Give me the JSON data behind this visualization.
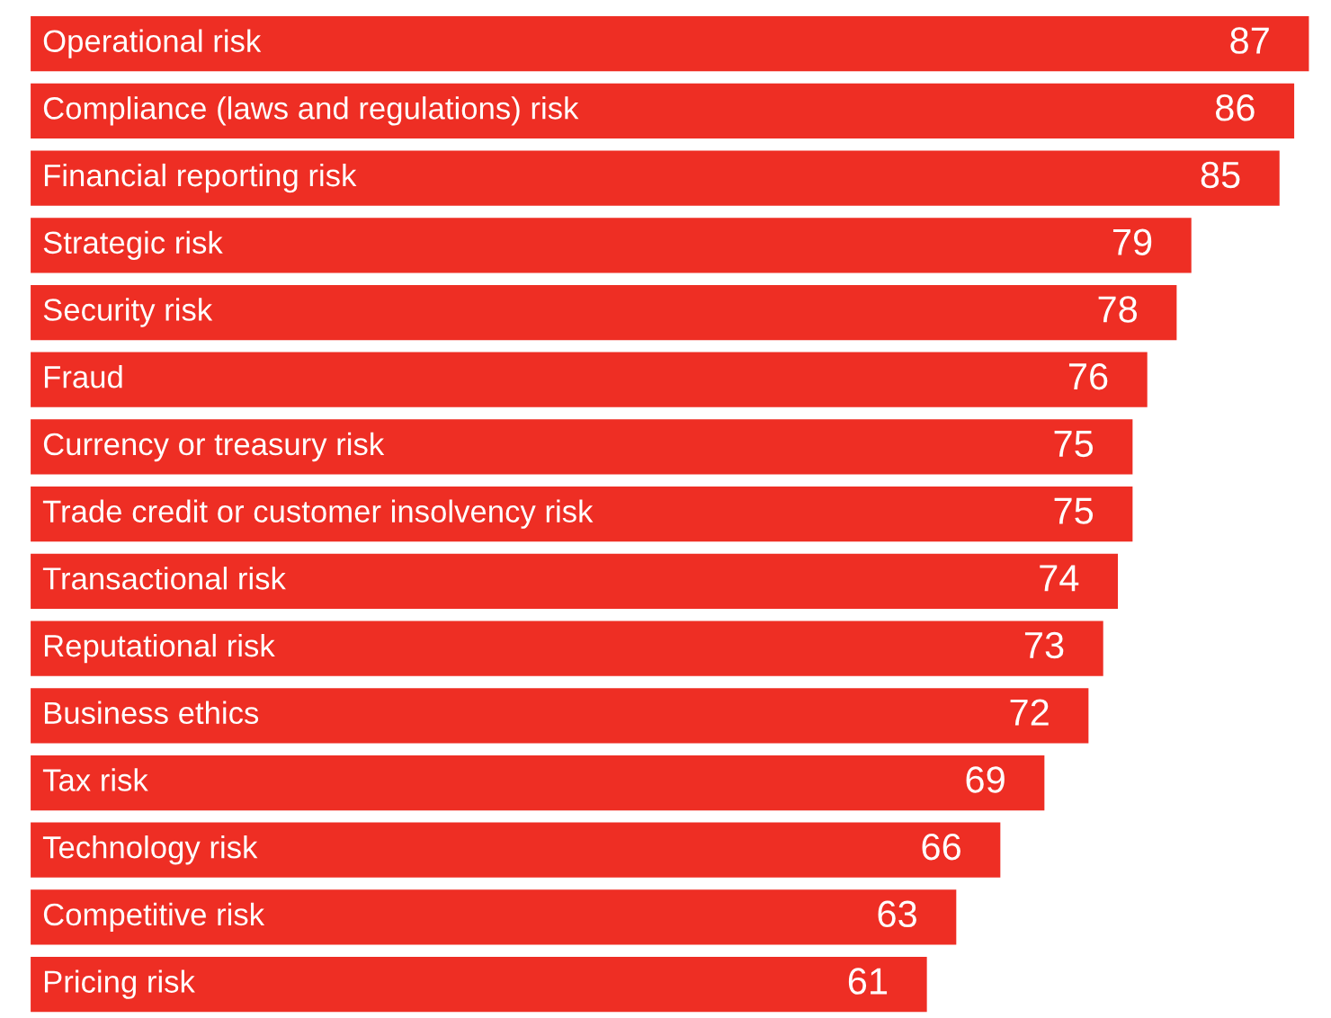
{
  "chart_data": {
    "type": "bar",
    "orientation": "horizontal",
    "data_labels": true,
    "color": "#ee2e24",
    "categories": [
      "Operational risk",
      "Compliance (laws and regulations) risk",
      "Financial reporting risk",
      "Strategic risk",
      "Security risk",
      "Fraud",
      "Currency or treasury risk",
      "Trade credit or customer insolvency risk",
      "Transactional risk",
      "Reputational risk",
      "Business ethics",
      "Tax risk",
      "Technology risk",
      "Competitive risk",
      "Pricing risk"
    ],
    "values": [
      87,
      86,
      85,
      79,
      78,
      76,
      75,
      75,
      74,
      73,
      72,
      69,
      66,
      63,
      61
    ]
  }
}
